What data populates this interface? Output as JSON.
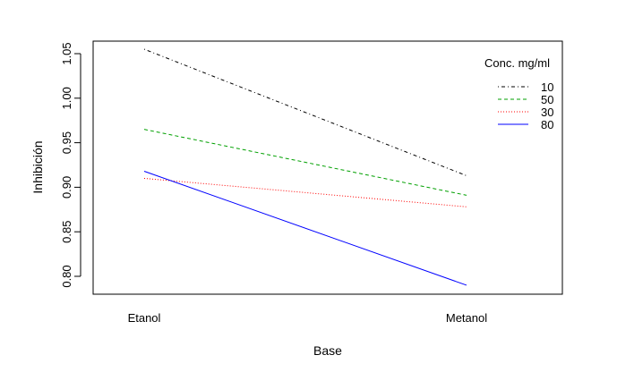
{
  "chart_data": {
    "type": "line",
    "xlabel": "Base",
    "ylabel": "Inhibición",
    "categories": [
      "Etanol",
      "Metanol"
    ],
    "ylim": [
      0.77,
      1.07
    ],
    "yticks": [
      "0.80",
      "0.85",
      "0.90",
      "0.95",
      "1.00",
      "1.05"
    ],
    "grid": false,
    "legend": {
      "title": "Conc. mg/ml",
      "position": "top-right"
    },
    "series": [
      {
        "name": "10",
        "values": [
          1.055,
          0.913
        ],
        "color": "#000000",
        "linestyle": "dashdot"
      },
      {
        "name": "50",
        "values": [
          0.965,
          0.891
        ],
        "color": "#00a000",
        "linestyle": "dashed"
      },
      {
        "name": "30",
        "values": [
          0.91,
          0.878
        ],
        "color": "#ff0000",
        "linestyle": "dotted"
      },
      {
        "name": "80",
        "values": [
          0.918,
          0.79
        ],
        "color": "#0000ff",
        "linestyle": "solid"
      }
    ]
  }
}
